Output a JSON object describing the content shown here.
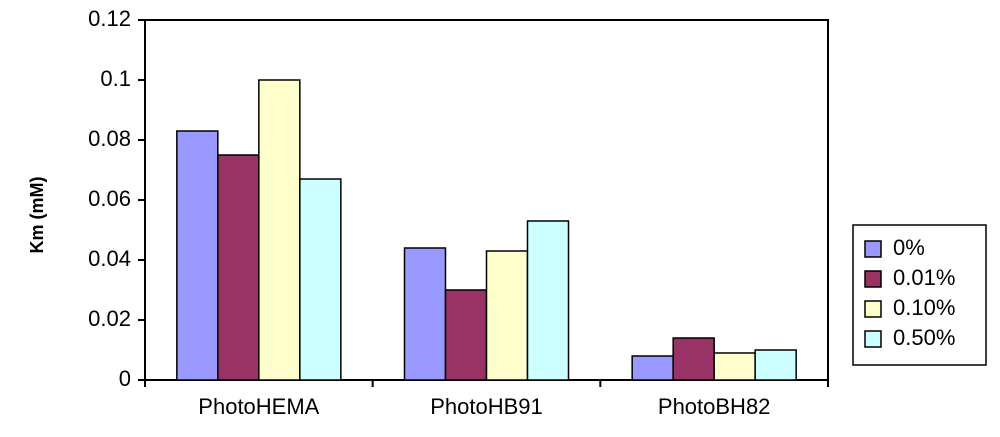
{
  "chart_data": {
    "type": "bar",
    "title": "",
    "xlabel": "",
    "ylabel": "Km (mM)",
    "ylim": [
      0,
      0.12
    ],
    "y_ticks": [
      "0",
      "0.02",
      "0.04",
      "0.06",
      "0.08",
      "0.1",
      "0.12"
    ],
    "y_tick_values": [
      0,
      0.02,
      0.04,
      0.06,
      0.08,
      0.1,
      0.12
    ],
    "categories": [
      "PhotoHEMA",
      "PhotoHB91",
      "PhotoBH82"
    ],
    "series": [
      {
        "name": "0%",
        "color": "#9999ff",
        "values": [
          0.083,
          0.044,
          0.008
        ]
      },
      {
        "name": "0.01%",
        "color": "#993366",
        "values": [
          0.075,
          0.03,
          0.014
        ]
      },
      {
        "name": "0.10%",
        "color": "#ffffcc",
        "values": [
          0.1,
          0.043,
          0.009
        ]
      },
      {
        "name": "0.50%",
        "color": "#ccffff",
        "values": [
          0.067,
          0.053,
          0.01
        ]
      }
    ],
    "grid": false,
    "legend_position": "right"
  }
}
